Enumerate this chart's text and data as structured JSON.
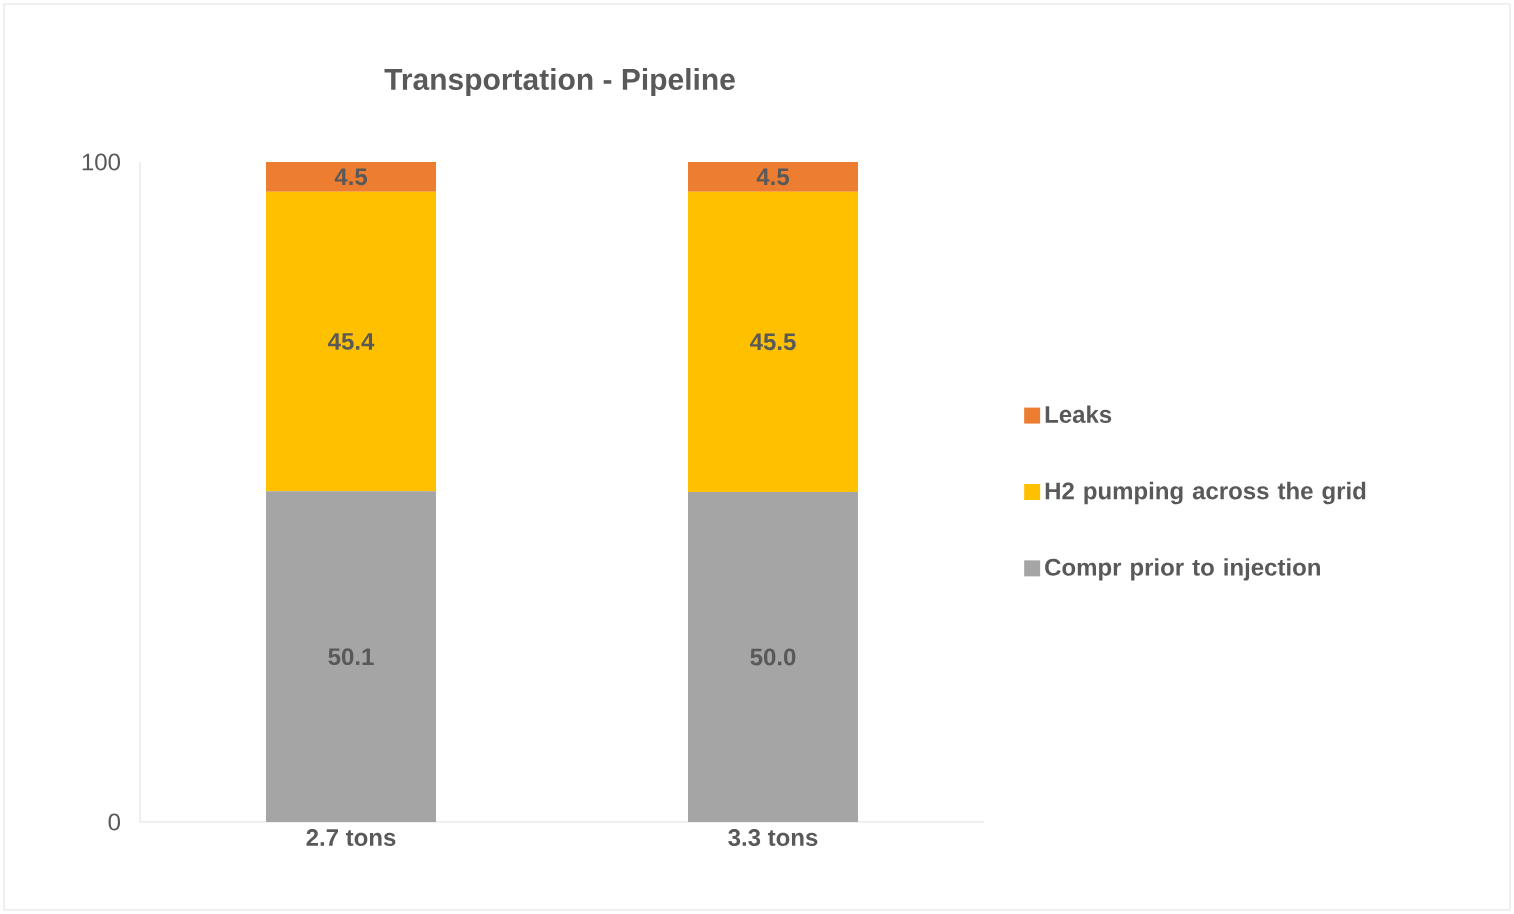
{
  "chart_data": {
    "type": "bar",
    "title": "Transportation - Pipeline",
    "stacked": true,
    "legend": "right",
    "categories": [
      "2.7 tons",
      "3.3 tons"
    ],
    "series": [
      {
        "name": "Compr prior to injection",
        "color": "#a5a5a5",
        "values": [
          50.1,
          50.0
        ],
        "value_labels": [
          "50.1",
          "50.0"
        ]
      },
      {
        "name": "H2 pumping across the grid",
        "color": "#ffc000",
        "values": [
          45.4,
          45.5
        ],
        "value_labels": [
          "45.4",
          "45.5"
        ]
      },
      {
        "name": "Leaks",
        "color": "#ed7d31",
        "values": [
          4.5,
          4.5
        ],
        "value_labels": [
          "4.5",
          "4.5"
        ]
      }
    ],
    "ylim": [
      0,
      100
    ],
    "yticks": [
      0,
      100
    ]
  }
}
